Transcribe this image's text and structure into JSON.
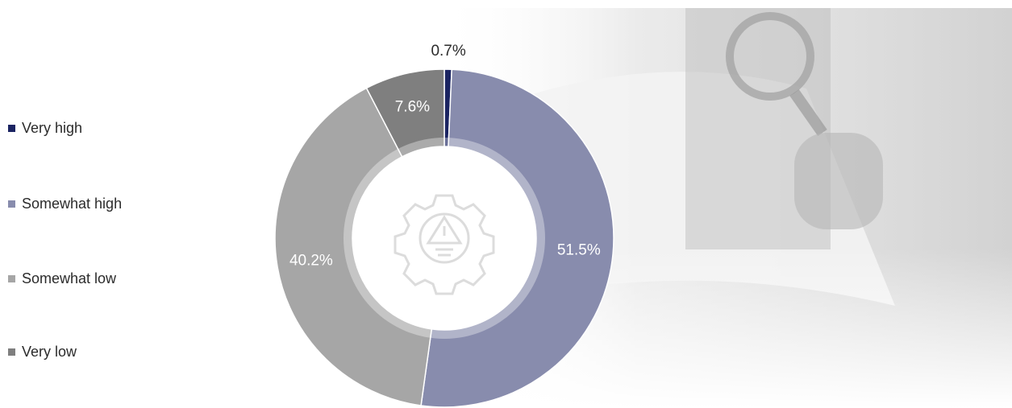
{
  "chart_data": {
    "type": "donut",
    "categories": [
      "Very high",
      "Somewhat high",
      "Somewhat low",
      "Very low"
    ],
    "values": [
      0.7,
      51.5,
      40.2,
      7.6
    ],
    "value_labels": [
      "0.7%",
      "51.5%",
      "40.2%",
      "7.6%"
    ],
    "colors": [
      "#1b2462",
      "#888cad",
      "#a6a6a6",
      "#7f7f7f"
    ],
    "legend": "left"
  }
}
